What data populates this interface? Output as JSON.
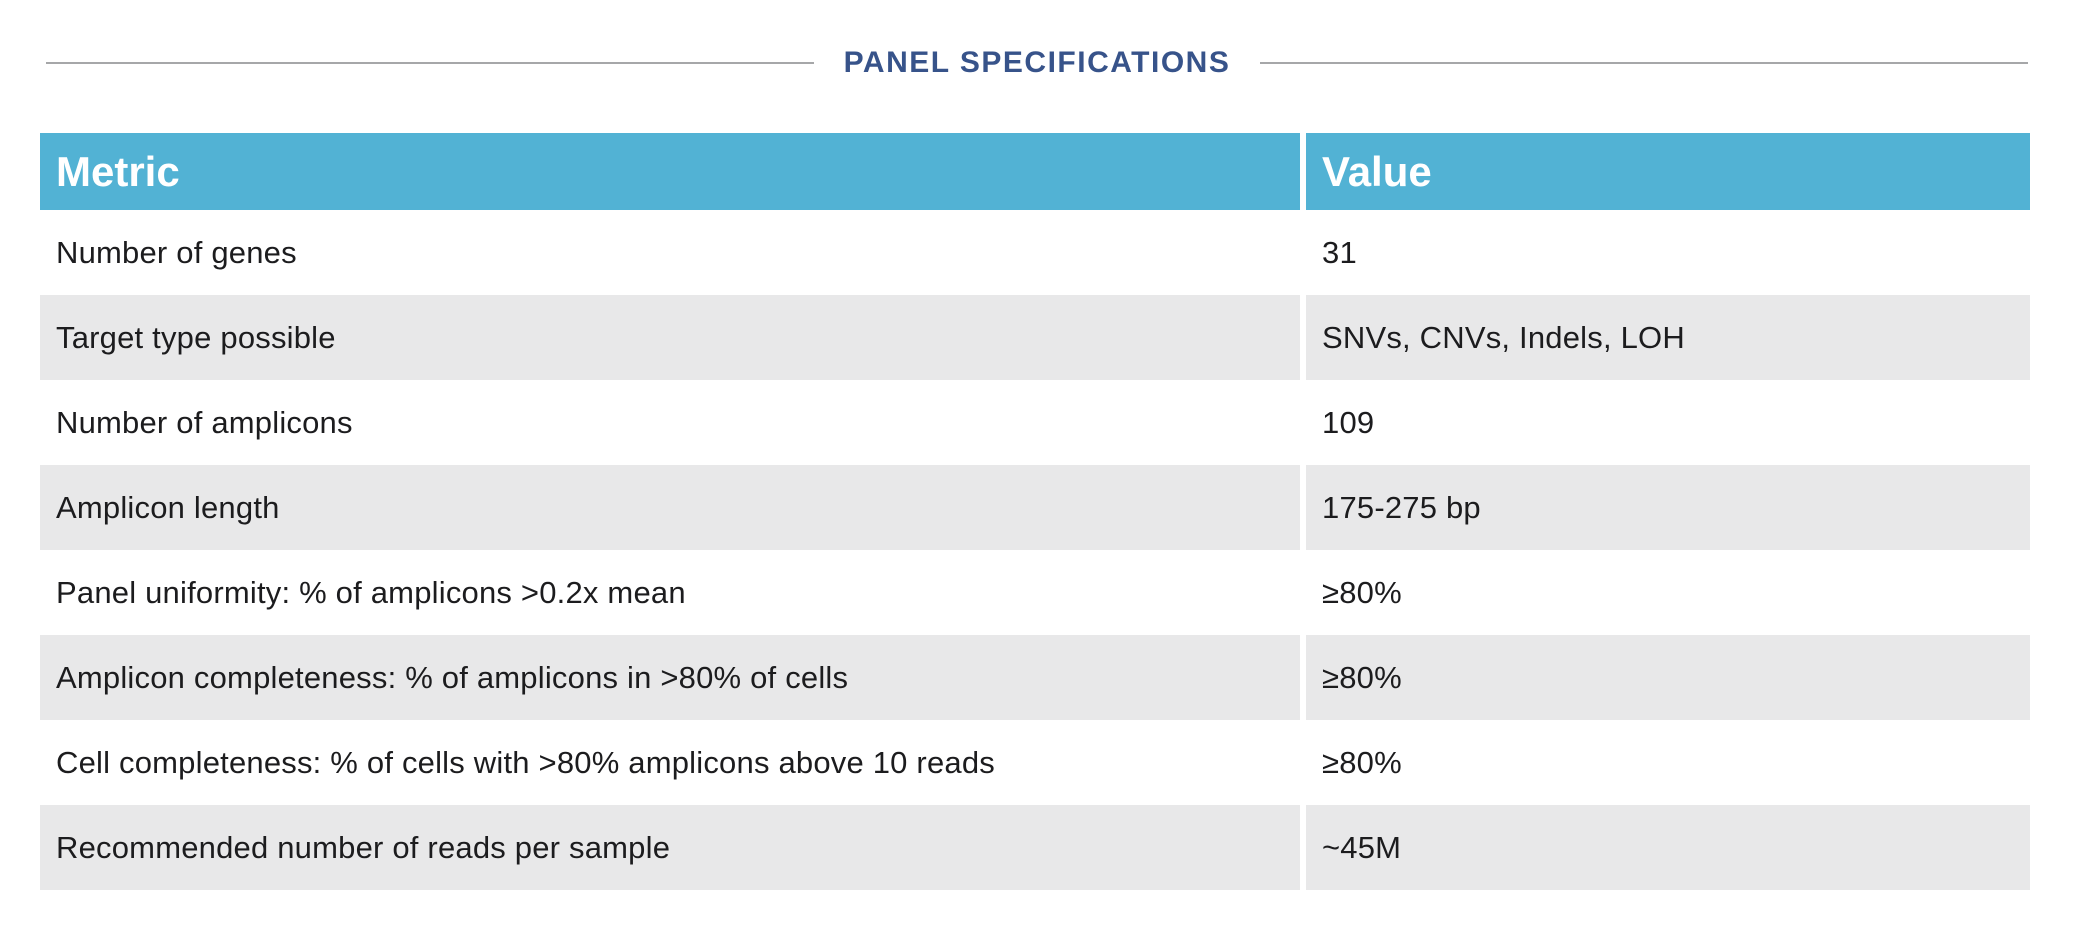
{
  "page": {
    "title": "PANEL SPECIFICATIONS"
  },
  "table": {
    "columns": [
      "Metric",
      "Value"
    ],
    "rows": [
      {
        "metric": "Number of genes",
        "value": "31"
      },
      {
        "metric": "Target type possible",
        "value": "SNVs, CNVs, Indels, LOH"
      },
      {
        "metric": "Number of amplicons",
        "value": "109"
      },
      {
        "metric": "Amplicon length",
        "value": "175-275 bp"
      },
      {
        "metric": "Panel uniformity: % of amplicons >0.2x mean",
        "value": "≥80%"
      },
      {
        "metric": "Amplicon completeness: % of amplicons in >80% of cells",
        "value": "≥80%"
      },
      {
        "metric": "Cell completeness: % of cells with >80% amplicons above 10 reads",
        "value": "≥80%"
      },
      {
        "metric": "Recommended number of reads per sample",
        "value": "~45M"
      }
    ]
  },
  "colors": {
    "header_bg": "#52b2d4",
    "alt_row_bg": "#e8e8e9",
    "title_text": "#37538a",
    "divider_line": "#a6a7a9",
    "body_text": "#1c1c1e",
    "header_text": "#ffffff"
  }
}
